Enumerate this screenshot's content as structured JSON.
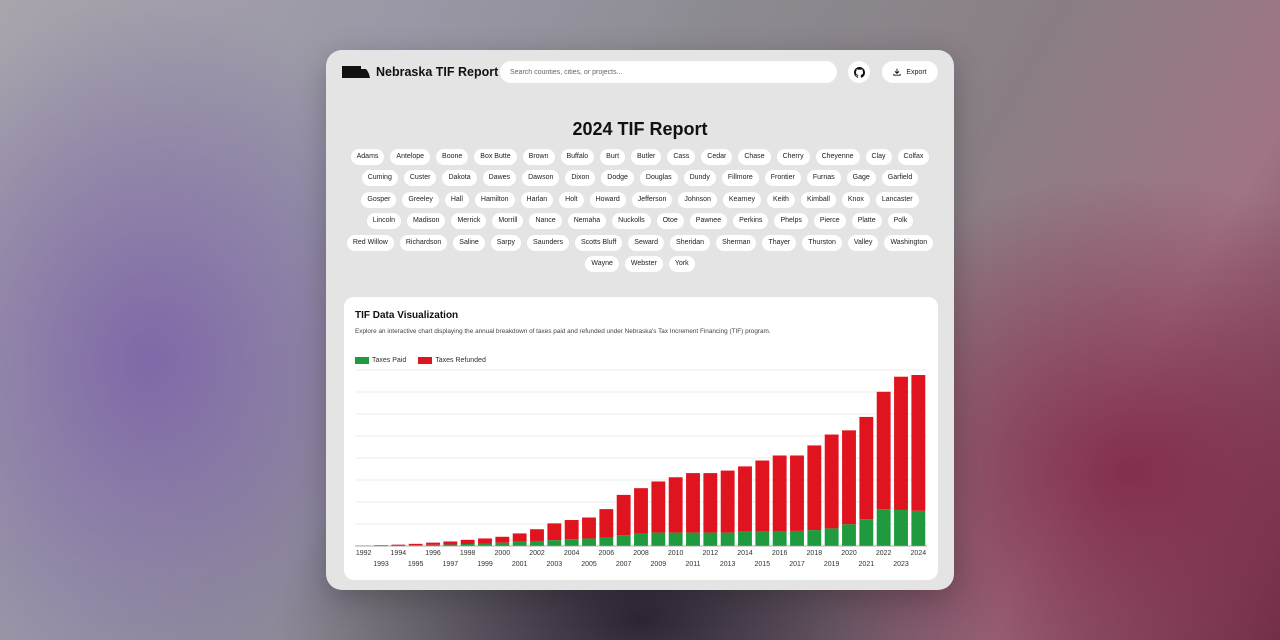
{
  "header": {
    "app_title": "Nebraska TIF Report",
    "search_placeholder": "Search counties, cities, or projects...",
    "export_label": "Export",
    "github_icon": "github-icon",
    "download_icon": "download-icon"
  },
  "page": {
    "title": "2024 TIF Report"
  },
  "counties": [
    "Adams",
    "Antelope",
    "Boone",
    "Box Butte",
    "Brown",
    "Buffalo",
    "Burt",
    "Butler",
    "Cass",
    "Cedar",
    "Chase",
    "Cherry",
    "Cheyenne",
    "Clay",
    "Colfax",
    "Cuming",
    "Custer",
    "Dakota",
    "Dawes",
    "Dawson",
    "Dixon",
    "Dodge",
    "Douglas",
    "Dundy",
    "Fillmore",
    "Frontier",
    "Furnas",
    "Gage",
    "Garfield",
    "Gosper",
    "Greeley",
    "Hall",
    "Hamilton",
    "Harlan",
    "Holt",
    "Howard",
    "Jefferson",
    "Johnson",
    "Kearney",
    "Keith",
    "Kimball",
    "Knox",
    "Lancaster",
    "Lincoln",
    "Madison",
    "Merrick",
    "Morrill",
    "Nance",
    "Nemaha",
    "Nuckolls",
    "Otoe",
    "Pawnee",
    "Perkins",
    "Phelps",
    "Pierce",
    "Platte",
    "Polk",
    "Red Willow",
    "Richardson",
    "Saline",
    "Sarpy",
    "Saunders",
    "Scotts Bluff",
    "Seward",
    "Sheridan",
    "Sherman",
    "Thayer",
    "Thurston",
    "Valley",
    "Washington",
    "Wayne",
    "Webster",
    "York"
  ],
  "card": {
    "title": "TIF Data Visualization",
    "description": "Explore an interactive chart displaying the annual breakdown of taxes paid and refunded under Nebraska's Tax Increment Financing (TIF) program."
  },
  "colors": {
    "paid": "#1f9a3f",
    "refunded": "#e0141e",
    "grid": "#e6e6e6"
  },
  "chart_data": {
    "type": "bar",
    "stacked": true,
    "categories": [
      "1992",
      "1993",
      "1994",
      "1995",
      "1996",
      "1997",
      "1998",
      "1999",
      "2000",
      "2001",
      "2002",
      "2003",
      "2004",
      "2005",
      "2006",
      "2007",
      "2008",
      "2009",
      "2010",
      "2011",
      "2012",
      "2013",
      "2014",
      "2015",
      "2016",
      "2017",
      "2018",
      "2019",
      "2020",
      "2021",
      "2022",
      "2023",
      "2024"
    ],
    "series": [
      {
        "name": "Taxes Paid",
        "values": [
          0.1,
          0.2,
          0.3,
          0.5,
          0.7,
          0.9,
          1.2,
          1.5,
          2.0,
          2.5,
          3.0,
          3.5,
          4.0,
          4.5,
          5.0,
          6.5,
          7.5,
          8.0,
          8.0,
          8.0,
          8.0,
          8.0,
          8.5,
          8.5,
          8.5,
          9.0,
          9.5,
          10.5,
          13.0,
          16.0,
          22.0,
          21.5,
          21.0
        ]
      },
      {
        "name": "Taxes Refunded",
        "values": [
          0.2,
          0.3,
          0.5,
          0.8,
          1.3,
          1.8,
          2.5,
          3.0,
          3.5,
          5.0,
          7.0,
          10.0,
          11.5,
          12.5,
          17.0,
          24.0,
          27.0,
          30.5,
          33.0,
          35.5,
          35.5,
          37.0,
          39.0,
          42.5,
          45.5,
          45.0,
          50.5,
          56.0,
          56.0,
          61.0,
          70.0,
          79.5,
          81.0
        ]
      }
    ],
    "ylim": [
      0,
      105
    ],
    "grid": true,
    "legend": "top-left"
  }
}
